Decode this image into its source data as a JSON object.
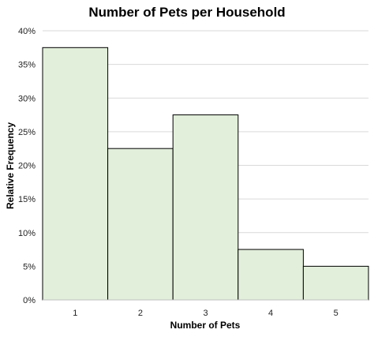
{
  "chart_data": {
    "type": "bar",
    "title": "Number of Pets per Household",
    "xlabel": "Number of Pets",
    "ylabel": "Relative Frequency",
    "categories": [
      "1",
      "2",
      "3",
      "4",
      "5"
    ],
    "values": [
      37.5,
      22.5,
      27.5,
      7.5,
      5.0
    ],
    "ylim": [
      0,
      40
    ],
    "yticks": [
      "0%",
      "5%",
      "10%",
      "15%",
      "20%",
      "25%",
      "30%",
      "35%",
      "40%"
    ],
    "grid": true,
    "bar_fill": "#e2efda",
    "bar_edge": "#000000"
  }
}
